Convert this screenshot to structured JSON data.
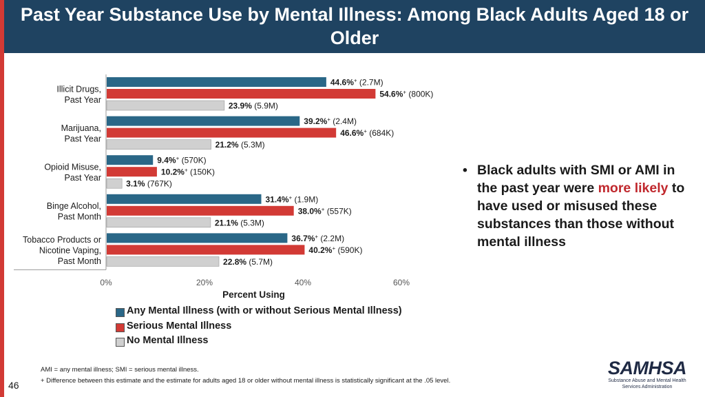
{
  "slide": {
    "title": "Past Year Substance Use by Mental Illness: Among Black Adults Aged 18 or Older",
    "page_number": "46",
    "bullet": {
      "before": "Black adults with SMI or AMI in the past year were ",
      "emphasis": "more likely",
      "after": " to have used or misused these substances than those without mental illness"
    },
    "footnotes": [
      "AMI = any mental illness; SMI = serious mental illness.",
      "+ Difference between this estimate and the estimate for adults aged 18 or older without mental illness is statistically significant at the .05 level."
    ],
    "logo": {
      "brand": "SAMHSA",
      "subtitle": "Substance Abuse and Mental Health Services Administration"
    }
  },
  "chart_data": {
    "type": "bar",
    "orientation": "horizontal",
    "xlabel": "Percent Using",
    "xlim": [
      0,
      60
    ],
    "xticks": [
      "0%",
      "20%",
      "40%",
      "60%"
    ],
    "grid": false,
    "legend_position": "bottom",
    "categories": [
      [
        "Illicit Drugs,",
        "Past Year"
      ],
      [
        "Marijuana,",
        "Past Year"
      ],
      [
        "Opioid Misuse,",
        "Past Year"
      ],
      [
        "Binge Alcohol,",
        "Past Month"
      ],
      [
        "Tobacco Products or",
        "Nicotine Vaping,",
        "Past Month"
      ]
    ],
    "series": [
      {
        "name": "Any Mental Illness (with or without Serious Mental Illness)",
        "color": "#2a6787",
        "values": [
          44.6,
          39.2,
          9.4,
          31.4,
          36.7
        ],
        "value_labels": [
          "44.6%",
          "39.2%",
          "9.4%",
          "31.4%",
          "36.7%"
        ],
        "significant": [
          true,
          true,
          true,
          true,
          true
        ],
        "counts": [
          "(2.7M)",
          "(2.4M)",
          "(570K)",
          "(1.9M)",
          "(2.2M)"
        ]
      },
      {
        "name": "Serious Mental Illness",
        "color": "#d23a35",
        "values": [
          54.6,
          46.6,
          10.2,
          38.0,
          40.2
        ],
        "value_labels": [
          "54.6%",
          "46.6%",
          "10.2%",
          "38.0%",
          "40.2%"
        ],
        "significant": [
          true,
          true,
          true,
          true,
          true
        ],
        "counts": [
          "(800K)",
          "(684K)",
          "(150K)",
          "(557K)",
          "(590K)"
        ]
      },
      {
        "name": "No Mental Illness",
        "color": "#d0d0d0",
        "values": [
          23.9,
          21.2,
          3.1,
          21.1,
          22.8
        ],
        "value_labels": [
          "23.9%",
          "21.2%",
          "3.1%",
          "21.1%",
          "22.8%"
        ],
        "significant": [
          false,
          false,
          false,
          false,
          false
        ],
        "counts": [
          "(5.9M)",
          "(5.3M)",
          "(767K)",
          "(5.3M)",
          "(5.7M)"
        ]
      }
    ]
  }
}
